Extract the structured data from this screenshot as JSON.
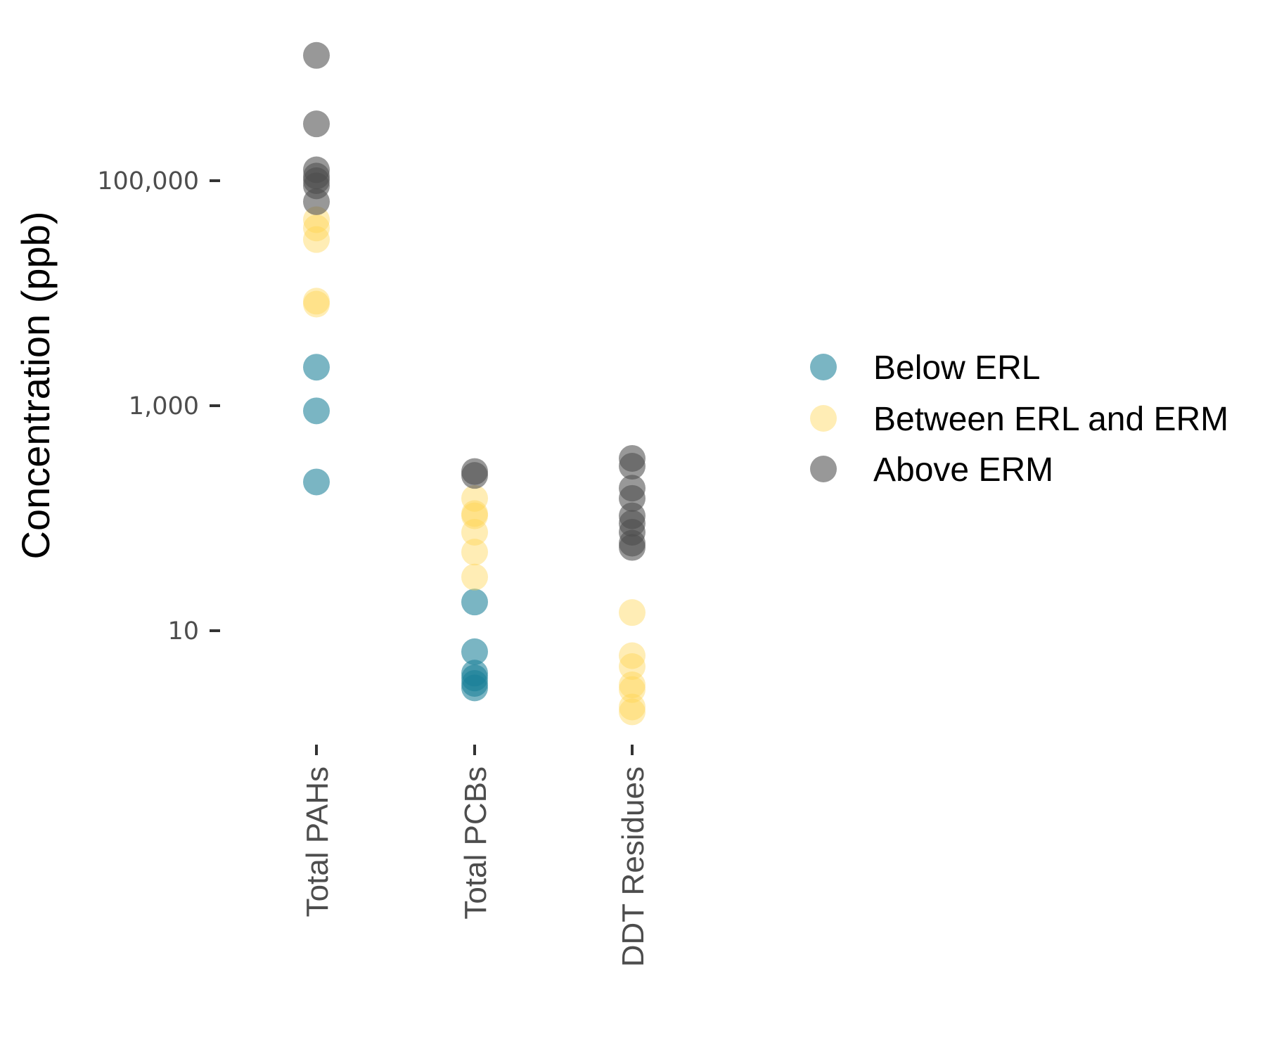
{
  "chart_data": {
    "type": "scatter",
    "title": "",
    "xlabel": "",
    "ylabel": "Concentration (ppb)",
    "y_scale": "log10",
    "ylim": [
      1.2,
      1200000
    ],
    "y_ticks": [
      {
        "value": 10,
        "label": "10"
      },
      {
        "value": 1000,
        "label": "1,000"
      },
      {
        "value": 100000,
        "label": "100,000"
      }
    ],
    "categories": [
      "Total PAHs",
      "Total PCBs",
      "DDT Residues"
    ],
    "grid": false,
    "legend_position": "right",
    "series": [
      {
        "name": "Below ERL",
        "color": "#1a7f97",
        "points": [
          {
            "x": "Total PAHs",
            "y": 2200
          },
          {
            "x": "Total PAHs",
            "y": 900
          },
          {
            "x": "Total PAHs",
            "y": 210
          },
          {
            "x": "Total PCBs",
            "y": 18
          },
          {
            "x": "Total PCBs",
            "y": 6.5
          },
          {
            "x": "Total PCBs",
            "y": 4.2
          },
          {
            "x": "Total PCBs",
            "y": 3.8
          },
          {
            "x": "Total PCBs",
            "y": 3.4
          },
          {
            "x": "Total PCBs",
            "y": 3.1
          }
        ]
      },
      {
        "name": "Between ERL and ERM",
        "color": "#ffd34f",
        "points": [
          {
            "x": "Total PAHs",
            "y": 45000
          },
          {
            "x": "Total PAHs",
            "y": 38000
          },
          {
            "x": "Total PAHs",
            "y": 30000
          },
          {
            "x": "Total PAHs",
            "y": 8500
          },
          {
            "x": "Total PAHs",
            "y": 8000
          },
          {
            "x": "Total PCBs",
            "y": 150
          },
          {
            "x": "Total PCBs",
            "y": 110
          },
          {
            "x": "Total PCBs",
            "y": 105
          },
          {
            "x": "Total PCBs",
            "y": 75
          },
          {
            "x": "Total PCBs",
            "y": 50
          },
          {
            "x": "Total PCBs",
            "y": 30
          },
          {
            "x": "DDT Residues",
            "y": 14.5
          },
          {
            "x": "DDT Residues",
            "y": 6
          },
          {
            "x": "DDT Residues",
            "y": 4.8
          },
          {
            "x": "DDT Residues",
            "y": 3.3
          },
          {
            "x": "DDT Residues",
            "y": 3.0
          },
          {
            "x": "DDT Residues",
            "y": 2.1
          },
          {
            "x": "DDT Residues",
            "y": 1.9
          }
        ]
      },
      {
        "name": "Above ERM",
        "color": "#4d4d4d",
        "points": [
          {
            "x": "Total PAHs",
            "y": 1300000
          },
          {
            "x": "Total PAHs",
            "y": 320000
          },
          {
            "x": "Total PAHs",
            "y": 125000
          },
          {
            "x": "Total PAHs",
            "y": 110000
          },
          {
            "x": "Total PAHs",
            "y": 100000
          },
          {
            "x": "Total PAHs",
            "y": 90000
          },
          {
            "x": "Total PAHs",
            "y": 65000
          },
          {
            "x": "Total PCBs",
            "y": 260
          },
          {
            "x": "Total PCBs",
            "y": 240
          },
          {
            "x": "DDT Residues",
            "y": 340
          },
          {
            "x": "DDT Residues",
            "y": 290
          },
          {
            "x": "DDT Residues",
            "y": 185
          },
          {
            "x": "DDT Residues",
            "y": 150
          },
          {
            "x": "DDT Residues",
            "y": 105
          },
          {
            "x": "DDT Residues",
            "y": 90
          },
          {
            "x": "DDT Residues",
            "y": 75
          },
          {
            "x": "DDT Residues",
            "y": 60
          },
          {
            "x": "DDT Residues",
            "y": 55
          }
        ]
      }
    ]
  }
}
